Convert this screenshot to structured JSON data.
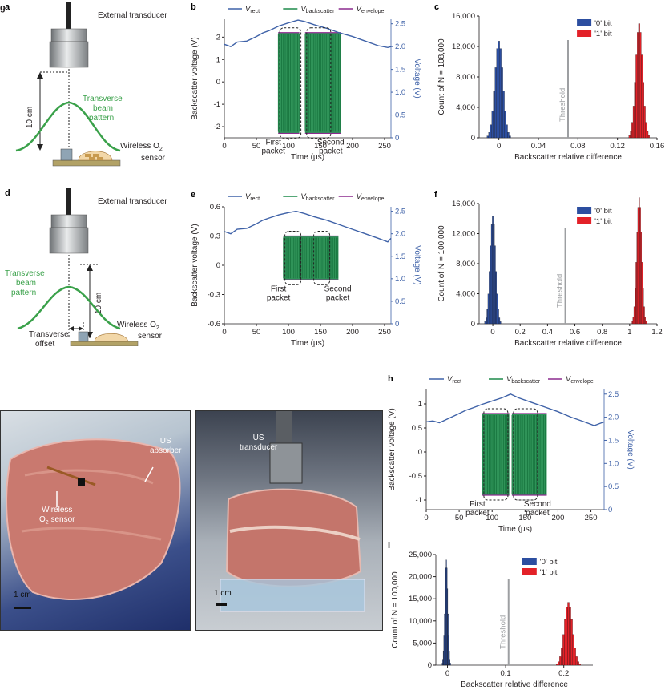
{
  "panel_labels": {
    "a": "a",
    "b": "b",
    "c": "c",
    "d": "d",
    "e": "e",
    "f": "f",
    "g": "g",
    "h": "h",
    "i": "i"
  },
  "schematic_a": {
    "transducer": "External transducer",
    "beam": [
      "Transverse",
      "beam",
      "pattern"
    ],
    "distance": "10 cm",
    "sensor": [
      "Wireless O",
      "2",
      "sensor"
    ]
  },
  "schematic_d": {
    "transducer": "External transducer",
    "beam": [
      "Transverse",
      "beam",
      "pattern"
    ],
    "distance": "10 cm",
    "offset": [
      "Transverse",
      "offset"
    ],
    "sensor": [
      "Wireless O",
      "2",
      "sensor"
    ]
  },
  "photos": {
    "left": {
      "us_absorber": [
        "US",
        "absorber"
      ],
      "sensor": [
        "Wireless",
        "O",
        "2",
        " sensor"
      ],
      "scale": "1 cm"
    },
    "right": {
      "us_transducer": [
        "US",
        "transducer"
      ],
      "scale": "1 cm"
    }
  },
  "legend_v": {
    "rect": "rect",
    "backscatter": "backscatter",
    "envelope": "envelope",
    "v": "V"
  },
  "legend_bits": {
    "zero": "'0' bit",
    "one": "'1' bit"
  },
  "threshold": "Threshold",
  "colors": {
    "rect": "#3f62a8",
    "backscatter": "#1d8a4a",
    "envelope": "#8b2a8e",
    "zero_bit": "#2c4ea0",
    "one_bit": "#e32128",
    "threshold": "#9d9fa2",
    "beam": "#3aa14a"
  },
  "chart_data": [
    {
      "panel": "b",
      "type": "line",
      "xlabel": "Time (μs)",
      "ylabel": "Backscatter voltage (V)",
      "y2label": "Voltage (V)",
      "xlim": [
        0,
        260
      ],
      "ylim": [
        -2.5,
        2.8
      ],
      "y2lim": [
        0,
        2.6
      ],
      "xticks": [
        0,
        50,
        100,
        150,
        200,
        250
      ],
      "yticks": [
        -2,
        -1,
        0,
        1,
        2
      ],
      "y2ticks": [
        0,
        0.5,
        1.0,
        1.5,
        2.0,
        2.5
      ],
      "annotations": {
        "first": [
          "First",
          "packet"
        ],
        "second": [
          "Second",
          "packet"
        ]
      },
      "series": [
        {
          "name": "V_rect",
          "x": [
            0,
            10,
            20,
            35,
            50,
            60,
            70,
            85,
            100,
            115,
            125,
            140,
            160,
            180,
            200,
            220,
            240,
            255,
            260
          ],
          "y": [
            2.05,
            2.0,
            2.1,
            2.12,
            2.22,
            2.3,
            2.35,
            2.45,
            2.52,
            2.58,
            2.55,
            2.48,
            2.4,
            2.3,
            2.22,
            2.12,
            2.02,
            1.98,
            2.0
          ]
        },
        {
          "name": "V_backscatter",
          "segments": [
            [
              84,
              117
            ],
            [
              126,
              182
            ]
          ],
          "amplitude": [
            -2.3,
            2.2
          ]
        }
      ]
    },
    {
      "panel": "c",
      "type": "bar",
      "xlabel": "Backscatter relative difference",
      "ylabel": "Count of N = 108,000",
      "xlim": [
        -0.02,
        0.16
      ],
      "ylim": [
        0,
        16000
      ],
      "xticks": [
        0,
        0.04,
        0.08,
        0.12,
        0.16
      ],
      "yticks": [
        0,
        4000,
        8000,
        12000,
        16000
      ],
      "threshold_x": 0.07,
      "series": [
        {
          "name": "'0' bit",
          "center": 0.0,
          "peak": 12700,
          "width": 0.004
        },
        {
          "name": "'1' bit",
          "center": 0.142,
          "peak": 15000,
          "width": 0.0035
        }
      ]
    },
    {
      "panel": "e",
      "type": "line",
      "xlabel": "Time (μs)",
      "ylabel": "Backscatter voltage (V)",
      "y2label": "Voltage (V)",
      "xlim": [
        0,
        260
      ],
      "ylim": [
        -0.6,
        0.6
      ],
      "y2lim": [
        0,
        2.6
      ],
      "xticks": [
        0,
        50,
        100,
        150,
        200,
        250
      ],
      "yticks": [
        -0.6,
        -0.3,
        0,
        0.3,
        0.6
      ],
      "y2ticks": [
        0,
        0.5,
        1.0,
        1.5,
        2.0,
        2.5
      ],
      "annotations": {
        "first": [
          "First",
          "packet"
        ],
        "second": [
          "Second",
          "packet"
        ]
      },
      "series": [
        {
          "name": "V_rect",
          "x": [
            0,
            10,
            20,
            35,
            50,
            60,
            70,
            85,
            100,
            112,
            125,
            140,
            160,
            180,
            200,
            220,
            240,
            255,
            260
          ],
          "y": [
            2.05,
            2.0,
            2.1,
            2.12,
            2.22,
            2.3,
            2.35,
            2.42,
            2.47,
            2.5,
            2.45,
            2.38,
            2.3,
            2.2,
            2.1,
            2.0,
            1.9,
            1.82,
            1.9
          ]
        },
        {
          "name": "V_backscatter",
          "segments": [
            [
              92,
              178
            ]
          ],
          "amplitude": [
            -0.15,
            0.3
          ]
        }
      ]
    },
    {
      "panel": "f",
      "type": "bar",
      "xlabel": "Backscatter relative difference",
      "ylabel": "Count of N = 100,000",
      "xlim": [
        -0.1,
        1.2
      ],
      "ylim": [
        0,
        16000
      ],
      "xticks": [
        0,
        0.2,
        0.4,
        0.6,
        0.8,
        1.0,
        1.2
      ],
      "yticks": [
        0,
        4000,
        8000,
        12000,
        16000
      ],
      "threshold_x": 0.53,
      "series": [
        {
          "name": "'0' bit",
          "center": 0.0,
          "peak": 14300,
          "width": 0.02
        },
        {
          "name": "'1' bit",
          "center": 1.07,
          "peak": 16800,
          "width": 0.018
        }
      ]
    },
    {
      "panel": "h",
      "type": "line",
      "xlabel": "Time (μs)",
      "ylabel": "Backscatter voltage (V)",
      "y2label": "Voltage (V)",
      "xlim": [
        0,
        270
      ],
      "ylim": [
        -1.2,
        1.3
      ],
      "y2lim": [
        0,
        2.6
      ],
      "xticks": [
        0,
        50,
        100,
        150,
        200,
        250
      ],
      "yticks": [
        -1.0,
        -0.5,
        0,
        0.5,
        1.0
      ],
      "y2ticks": [
        0,
        0.5,
        1.0,
        1.5,
        2.0,
        2.5
      ],
      "annotations": {
        "first": [
          "First",
          "packet"
        ],
        "second": [
          "Second",
          "packet"
        ]
      },
      "series": [
        {
          "name": "V_rect",
          "x": [
            0,
            10,
            20,
            35,
            50,
            60,
            70,
            85,
            100,
            115,
            128,
            140,
            160,
            180,
            200,
            220,
            240,
            255,
            270
          ],
          "y": [
            1.9,
            1.92,
            1.88,
            1.98,
            2.08,
            2.15,
            2.2,
            2.28,
            2.35,
            2.42,
            2.5,
            2.42,
            2.32,
            2.22,
            2.12,
            2.0,
            1.9,
            1.82,
            1.9
          ]
        },
        {
          "name": "V_backscatter",
          "segments": [
            [
              85,
              126
            ],
            [
              130,
              183
            ]
          ],
          "amplitude": [
            -0.9,
            0.8
          ]
        }
      ]
    },
    {
      "panel": "i",
      "type": "bar",
      "xlabel": "Backscatter relative difference",
      "ylabel": "Count of N = 100,000",
      "xlim": [
        -0.02,
        0.25
      ],
      "ylim": [
        0,
        25000
      ],
      "xticks": [
        0,
        0.1,
        0.2
      ],
      "yticks": [
        0,
        5000,
        10000,
        15000,
        20000,
        25000
      ],
      "threshold_x": 0.105,
      "series": [
        {
          "name": "'0' bit",
          "center": -0.002,
          "peak": 23800,
          "width": 0.0025
        },
        {
          "name": "'1' bit",
          "center": 0.208,
          "peak": 14200,
          "width": 0.007
        }
      ]
    }
  ]
}
